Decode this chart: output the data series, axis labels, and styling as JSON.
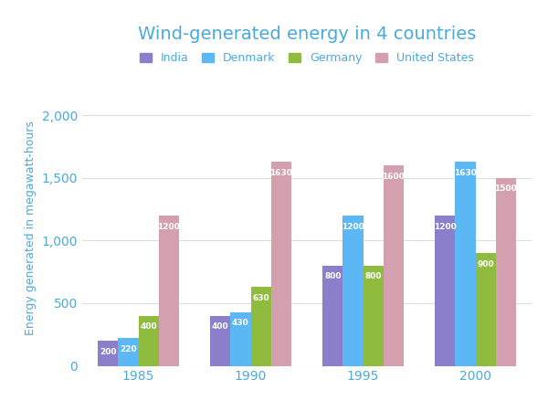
{
  "title": "Wind-generated energy in 4 countries",
  "ylabel": "Energy generated in megawatt-hours",
  "years": [
    1985,
    1990,
    1995,
    2000
  ],
  "countries": [
    "India",
    "Denmark",
    "Germany",
    "United States"
  ],
  "colors": [
    "#8B7FCC",
    "#5BB8F5",
    "#8FBC3F",
    "#D4A0B0"
  ],
  "values": {
    "India": [
      200,
      400,
      800,
      1200
    ],
    "Denmark": [
      220,
      430,
      1200,
      1630
    ],
    "Germany": [
      400,
      630,
      800,
      900
    ],
    "United States": [
      1200,
      1630,
      1600,
      1500
    ]
  },
  "ylim": [
    0,
    2200
  ],
  "yticks": [
    0,
    500,
    1000,
    1500,
    2000
  ],
  "ytick_labels": [
    "0",
    "500",
    "1,000",
    "1,500",
    "2,000"
  ],
  "bar_width": 0.18,
  "title_color": "#4AABDB",
  "ylabel_color": "#4AABDB",
  "tick_color": "#4AABDB",
  "value_label_color": "white",
  "background_color": "#ffffff",
  "grid_color": "#DDDDDD"
}
